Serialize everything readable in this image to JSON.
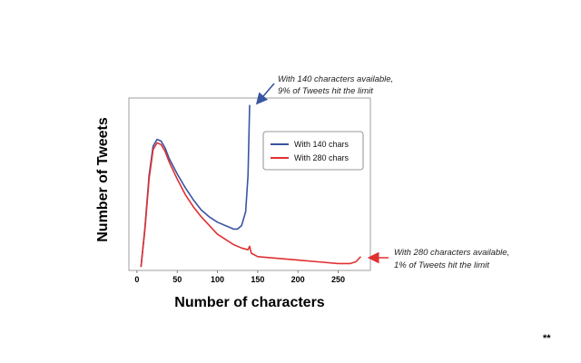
{
  "chart_data": {
    "type": "line",
    "title": "",
    "xlabel": "Number of characters",
    "ylabel": "Number of Tweets",
    "xlim": [
      -10,
      290
    ],
    "ylim": [
      0,
      100
    ],
    "x_ticks": [
      0,
      50,
      100,
      150,
      200,
      250
    ],
    "y_ticks": [],
    "grid": false,
    "legend_position": "top-right",
    "series": [
      {
        "name": "With 140 chars",
        "color": "#3a55a0",
        "points": [
          [
            5,
            2
          ],
          [
            10,
            25
          ],
          [
            15,
            55
          ],
          [
            20,
            72
          ],
          [
            25,
            76
          ],
          [
            30,
            75
          ],
          [
            35,
            71
          ],
          [
            40,
            65
          ],
          [
            50,
            56
          ],
          [
            60,
            48
          ],
          [
            70,
            41
          ],
          [
            80,
            35
          ],
          [
            90,
            31
          ],
          [
            100,
            28
          ],
          [
            110,
            26
          ],
          [
            120,
            24
          ],
          [
            125,
            24
          ],
          [
            130,
            26
          ],
          [
            135,
            34
          ],
          [
            138,
            55
          ],
          [
            140,
            96
          ]
        ]
      },
      {
        "name": "With 280 chars",
        "color": "#e03030",
        "points": [
          [
            5,
            2
          ],
          [
            10,
            24
          ],
          [
            15,
            53
          ],
          [
            20,
            70
          ],
          [
            25,
            74
          ],
          [
            30,
            73
          ],
          [
            35,
            69
          ],
          [
            40,
            63
          ],
          [
            50,
            53
          ],
          [
            60,
            44
          ],
          [
            70,
            37
          ],
          [
            80,
            31
          ],
          [
            90,
            26
          ],
          [
            100,
            21
          ],
          [
            110,
            18
          ],
          [
            120,
            15
          ],
          [
            130,
            13
          ],
          [
            138,
            12
          ],
          [
            140,
            14
          ],
          [
            142,
            10
          ],
          [
            150,
            8
          ],
          [
            175,
            7
          ],
          [
            200,
            6
          ],
          [
            225,
            5
          ],
          [
            250,
            4
          ],
          [
            265,
            4
          ],
          [
            272,
            5
          ],
          [
            278,
            8
          ]
        ]
      }
    ],
    "annotations": [
      {
        "text_lines": [
          "With 140 characters available,",
          "9% of Tweets hit the limit"
        ],
        "color": "#3a55a0"
      },
      {
        "text_lines": [
          "With 280 characters available,",
          "1% of Tweets hit the limit"
        ],
        "color": "#e03030"
      }
    ]
  },
  "footnote": "**"
}
